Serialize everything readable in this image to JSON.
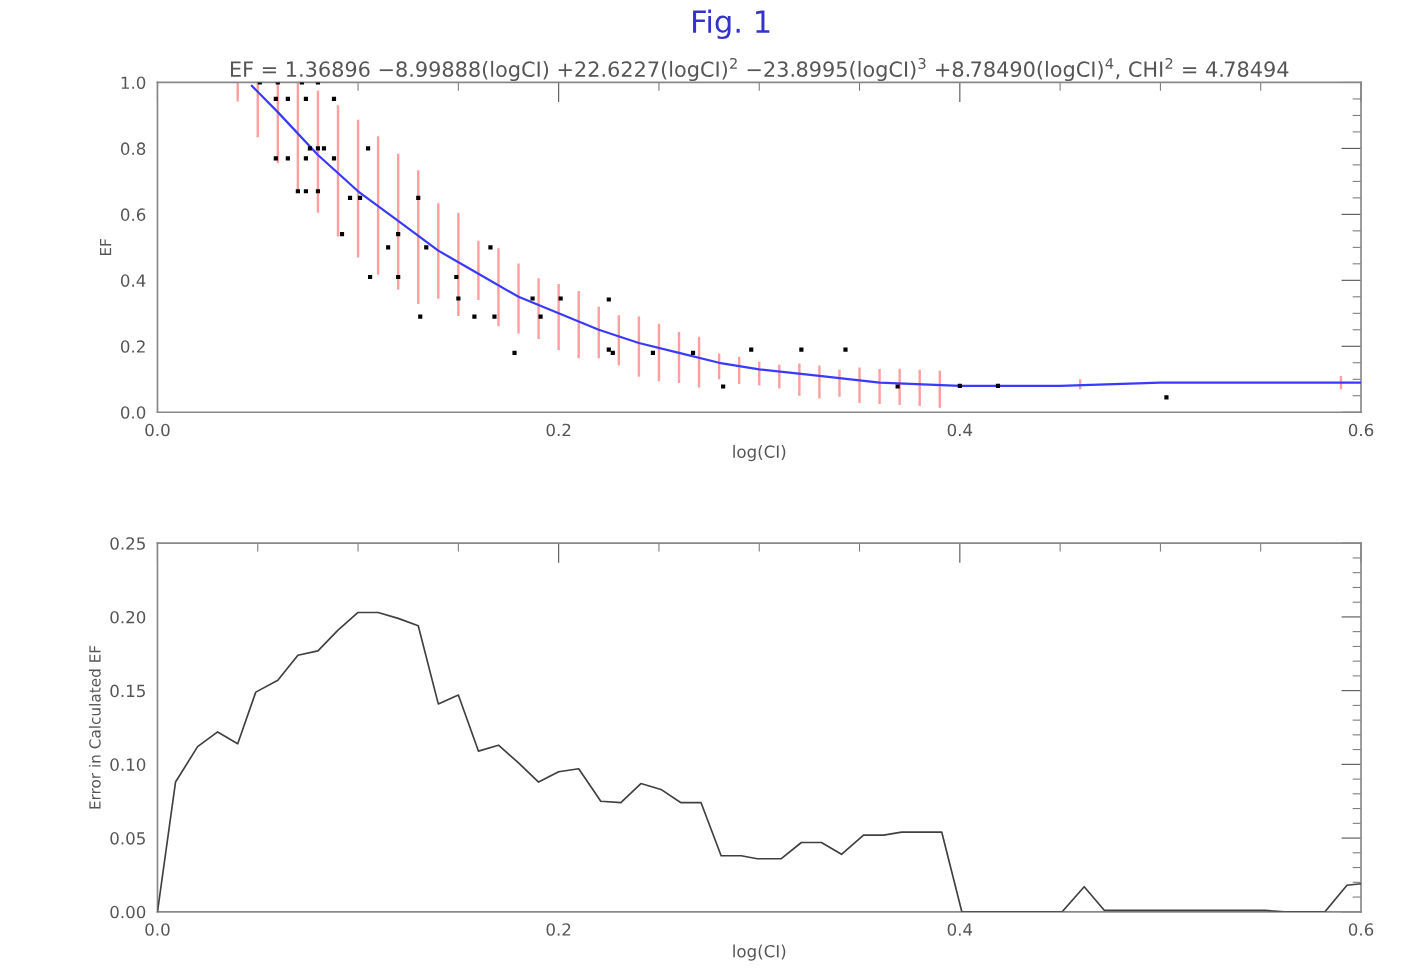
{
  "chart_data": [
    {
      "type": "scatter",
      "title": "Fig. 1",
      "subtitle": "EF = 1.36896 −8.99888(logCI) +22.6227(logCI)$^{2}$ −23.8995(logCI)$^{3}$ +8.78490(logCI)$^{4}$, CHI$^{2}$ = 4.78494",
      "xlabel": "log(CI)",
      "ylabel": "EF",
      "xlim": [
        0,
        0.6
      ],
      "ylim": [
        0,
        1.0
      ],
      "xticks": [
        {
          "value": 0,
          "label": "0.0"
        },
        {
          "value": 0.05,
          "label": null
        },
        {
          "value": 0.1,
          "label": null
        },
        {
          "value": 0.15,
          "label": null
        },
        {
          "value": 0.2,
          "label": "0.2"
        },
        {
          "value": 0.25,
          "label": null
        },
        {
          "value": 0.3,
          "label": null
        },
        {
          "value": 0.35,
          "label": null
        },
        {
          "value": 0.4,
          "label": "0.4"
        },
        {
          "value": 0.45,
          "label": null
        },
        {
          "value": 0.5,
          "label": null
        },
        {
          "value": 0.55,
          "label": null
        },
        {
          "value": 0.6,
          "label": "0.6"
        }
      ],
      "yticks": [
        {
          "value": 0,
          "label": "0.0"
        },
        {
          "value": 0.05,
          "label": null
        },
        {
          "value": 0.1,
          "label": null
        },
        {
          "value": 0.15,
          "label": null
        },
        {
          "value": 0.2,
          "label": "0.2"
        },
        {
          "value": 0.25,
          "label": null
        },
        {
          "value": 0.3,
          "label": null
        },
        {
          "value": 0.35,
          "label": null
        },
        {
          "value": 0.4,
          "label": "0.4"
        },
        {
          "value": 0.45,
          "label": null
        },
        {
          "value": 0.5,
          "label": null
        },
        {
          "value": 0.55,
          "label": null
        },
        {
          "value": 0.6,
          "label": "0.6"
        },
        {
          "value": 0.65,
          "label": null
        },
        {
          "value": 0.7,
          "label": null
        },
        {
          "value": 0.75,
          "label": null
        },
        {
          "value": 0.8,
          "label": "0.8"
        },
        {
          "value": 0.85,
          "label": null
        },
        {
          "value": 0.9,
          "label": null
        },
        {
          "value": 0.95,
          "label": null
        },
        {
          "value": 1.0,
          "label": "1.0"
        }
      ],
      "grid": false,
      "legend": false,
      "series": [
        {
          "type": "bar",
          "color": "#ff9f9f",
          "x": [
            0.04,
            0.05,
            0.06,
            0.07,
            0.08,
            0.09,
            0.1,
            0.11,
            0.12,
            0.13,
            0.14,
            0.15,
            0.16,
            0.17,
            0.18,
            0.19,
            0.2,
            0.21,
            0.22,
            0.23,
            0.24,
            0.25,
            0.26,
            0.27,
            0.28,
            0.29,
            0.3,
            0.31,
            0.32,
            0.33,
            0.34,
            0.35,
            0.36,
            0.37,
            0.38,
            0.39,
            0.46,
            0.59
          ],
          "base": [
            0.942,
            0.834,
            0.756,
            0.668,
            0.605,
            0.533,
            0.469,
            0.417,
            0.372,
            0.328,
            0.344,
            0.292,
            0.34,
            0.261,
            0.239,
            0.222,
            0.189,
            0.164,
            0.164,
            0.142,
            0.108,
            0.094,
            0.089,
            0.075,
            0.1,
            0.086,
            0.081,
            0.072,
            0.05,
            0.042,
            0.047,
            0.028,
            0.025,
            0.022,
            0.019,
            0.014,
            0.07,
            0.07
          ],
          "values": [
            0.058,
            0.166,
            0.244,
            0.332,
            0.37,
            0.398,
            0.418,
            0.42,
            0.412,
            0.406,
            0.29,
            0.312,
            0.18,
            0.236,
            0.212,
            0.184,
            0.2,
            0.204,
            0.156,
            0.152,
            0.182,
            0.174,
            0.154,
            0.154,
            0.078,
            0.082,
            0.072,
            0.072,
            0.098,
            0.1,
            0.082,
            0.108,
            0.106,
            0.11,
            0.11,
            0.112,
            0.03,
            0.04
          ]
        },
        {
          "marker": "square",
          "color": "#000000",
          "x": [
            0.051,
            0.06,
            0.072,
            0.08,
            0.059,
            0.065,
            0.074,
            0.088,
            0.076,
            0.08,
            0.083,
            0.105,
            0.059,
            0.065,
            0.074,
            0.088,
            0.07,
            0.074,
            0.08,
            0.096,
            0.101,
            0.13,
            0.092,
            0.12,
            0.115,
            0.134,
            0.166,
            0.106,
            0.12,
            0.149,
            0.15,
            0.187,
            0.201,
            0.131,
            0.158,
            0.168,
            0.191,
            0.178,
            0.225,
            0.225,
            0.227,
            0.247,
            0.267,
            0.282,
            0.296,
            0.321,
            0.343,
            0.369,
            0.4,
            0.419,
            0.503
          ],
          "values": [
            1.0,
            1.0,
            1.0,
            1.0,
            0.95,
            0.95,
            0.95,
            0.95,
            0.8,
            0.8,
            0.8,
            0.8,
            0.77,
            0.77,
            0.77,
            0.77,
            0.67,
            0.67,
            0.67,
            0.65,
            0.65,
            0.65,
            0.54,
            0.54,
            0.5,
            0.5,
            0.5,
            0.41,
            0.41,
            0.41,
            0.345,
            0.345,
            0.345,
            0.29,
            0.29,
            0.29,
            0.29,
            0.18,
            0.342,
            0.19,
            0.18,
            0.18,
            0.18,
            0.078,
            0.19,
            0.19,
            0.19,
            0.078,
            0.08,
            0.08,
            0.045
          ]
        },
        {
          "type": "line",
          "marker": "none",
          "color": "#3a3aff",
          "x": [
            0.047,
            0.06,
            0.08,
            0.1,
            0.12,
            0.14,
            0.16,
            0.18,
            0.2,
            0.22,
            0.24,
            0.26,
            0.28,
            0.3,
            0.33,
            0.36,
            0.4,
            0.45,
            0.5,
            0.55,
            0.6
          ],
          "values": [
            0.99,
            0.91,
            0.78,
            0.67,
            0.58,
            0.49,
            0.42,
            0.35,
            0.3,
            0.25,
            0.21,
            0.18,
            0.15,
            0.13,
            0.11,
            0.09,
            0.08,
            0.08,
            0.09,
            0.09,
            0.09
          ]
        }
      ]
    },
    {
      "type": "line",
      "xlabel": "log(CI)",
      "ylabel": "Error in Calculated EF",
      "xlim": [
        0,
        0.6
      ],
      "ylim": [
        0,
        0.25
      ],
      "xticks": [
        {
          "value": 0,
          "label": "0.0"
        },
        {
          "value": 0.05,
          "label": null
        },
        {
          "value": 0.1,
          "label": null
        },
        {
          "value": 0.15,
          "label": null
        },
        {
          "value": 0.2,
          "label": "0.2"
        },
        {
          "value": 0.25,
          "label": null
        },
        {
          "value": 0.3,
          "label": null
        },
        {
          "value": 0.35,
          "label": null
        },
        {
          "value": 0.4,
          "label": "0.4"
        },
        {
          "value": 0.45,
          "label": null
        },
        {
          "value": 0.5,
          "label": null
        },
        {
          "value": 0.55,
          "label": null
        },
        {
          "value": 0.6,
          "label": "0.6"
        }
      ],
      "yticks": [
        {
          "value": 0,
          "label": "0.00"
        },
        {
          "value": 0.01,
          "label": null
        },
        {
          "value": 0.02,
          "label": null
        },
        {
          "value": 0.03,
          "label": null
        },
        {
          "value": 0.04,
          "label": null
        },
        {
          "value": 0.05,
          "label": "0.05"
        },
        {
          "value": 0.06,
          "label": null
        },
        {
          "value": 0.07,
          "label": null
        },
        {
          "value": 0.08,
          "label": null
        },
        {
          "value": 0.09,
          "label": null
        },
        {
          "value": 0.1,
          "label": "0.10"
        },
        {
          "value": 0.11,
          "label": null
        },
        {
          "value": 0.12,
          "label": null
        },
        {
          "value": 0.13,
          "label": null
        },
        {
          "value": 0.14,
          "label": null
        },
        {
          "value": 0.15,
          "label": "0.15"
        },
        {
          "value": 0.16,
          "label": null
        },
        {
          "value": 0.17,
          "label": null
        },
        {
          "value": 0.18,
          "label": null
        },
        {
          "value": 0.19,
          "label": null
        },
        {
          "value": 0.2,
          "label": "0.20"
        },
        {
          "value": 0.21,
          "label": null
        },
        {
          "value": 0.22,
          "label": null
        },
        {
          "value": 0.23,
          "label": null
        },
        {
          "value": 0.24,
          "label": null
        },
        {
          "value": 0.25,
          "label": "0.25"
        }
      ],
      "grid": false,
      "legend": false,
      "series": [
        {
          "marker": "none",
          "color": "#404040",
          "x": [
            0,
            0.009,
            0.02,
            0.03,
            0.04,
            0.049,
            0.06,
            0.07,
            0.08,
            0.09,
            0.1,
            0.11,
            0.12,
            0.13,
            0.14,
            0.15,
            0.16,
            0.17,
            0.18,
            0.19,
            0.2,
            0.21,
            0.221,
            0.231,
            0.241,
            0.251,
            0.261,
            0.271,
            0.281,
            0.291,
            0.299,
            0.311,
            0.321,
            0.331,
            0.341,
            0.352,
            0.362,
            0.371,
            0.391,
            0.401,
            0.451,
            0.462,
            0.472,
            0.552,
            0.562,
            0.582,
            0.593,
            0.6
          ],
          "values": [
            0,
            0.088,
            0.112,
            0.122,
            0.114,
            0.149,
            0.157,
            0.174,
            0.177,
            0.191,
            0.203,
            0.203,
            0.199,
            0.194,
            0.141,
            0.147,
            0.109,
            0.113,
            0.101,
            0.088,
            0.095,
            0.097,
            0.075,
            0.074,
            0.087,
            0.083,
            0.074,
            0.074,
            0.038,
            0.038,
            0.036,
            0.036,
            0.047,
            0.047,
            0.039,
            0.052,
            0.052,
            0.054,
            0.054,
            0,
            0,
            0.017,
            0.001,
            0.001,
            0,
            0,
            0.018,
            0.019
          ]
        }
      ]
    }
  ]
}
